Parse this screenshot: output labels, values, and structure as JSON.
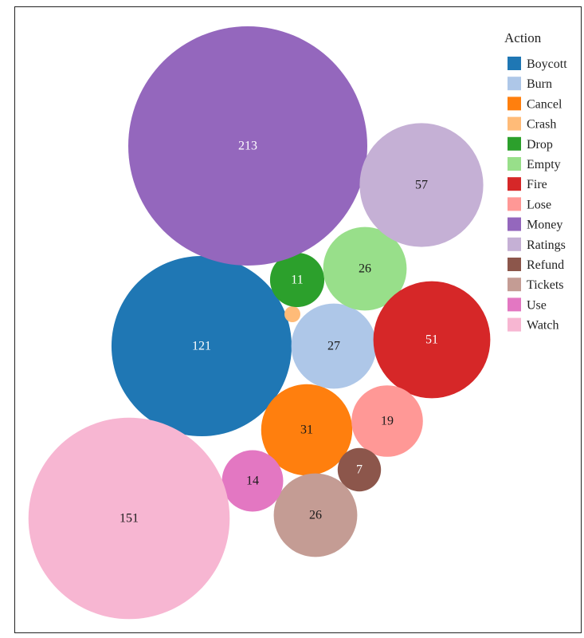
{
  "chart_data": {
    "type": "bubble",
    "title": "",
    "legend": {
      "title": "Action",
      "placement": "top-right"
    },
    "series": [
      {
        "name": "Boycott",
        "value": 121,
        "color": "#1f77b4"
      },
      {
        "name": "Burn",
        "value": 27,
        "color": "#aec7e8"
      },
      {
        "name": "Cancel",
        "value": 31,
        "color": "#ff7f0e"
      },
      {
        "name": "Crash",
        "value": 1,
        "color": "#ffbb78"
      },
      {
        "name": "Drop",
        "value": 11,
        "color": "#2ca02c"
      },
      {
        "name": "Empty",
        "value": 26,
        "color": "#98df8a"
      },
      {
        "name": "Fire",
        "value": 51,
        "color": "#d62728"
      },
      {
        "name": "Lose",
        "value": 19,
        "color": "#ff9896"
      },
      {
        "name": "Money",
        "value": 213,
        "color": "#9467bd"
      },
      {
        "name": "Ratings",
        "value": 57,
        "color": "#c5b0d5"
      },
      {
        "name": "Refund",
        "value": 7,
        "color": "#8c564b"
      },
      {
        "name": "Tickets",
        "value": 26,
        "color": "#c49c94"
      },
      {
        "name": "Use",
        "value": 14,
        "color": "#e377c2"
      },
      {
        "name": "Watch",
        "value": 151,
        "color": "#f7b6d2"
      }
    ]
  }
}
